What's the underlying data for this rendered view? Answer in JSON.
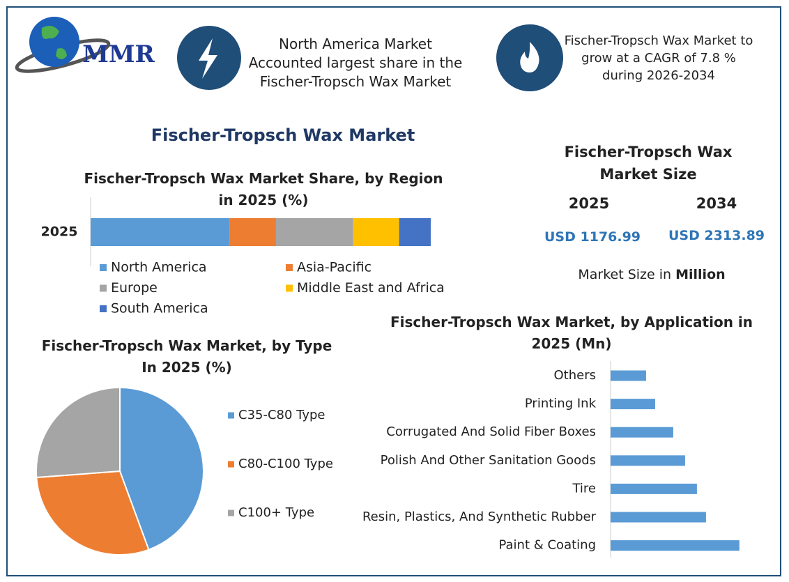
{
  "header": {
    "logo": "MMR",
    "text_left": "North America Market Accounted largest share in the Fischer-Tropsch Wax Market",
    "text_right": "Fischer-Tropsch Wax Market to grow at a CAGR of 7.8 % during 2026-2034"
  },
  "main_title": "Fischer-Tropsch Wax Market",
  "market_size": {
    "title": "Fischer-Tropsch Wax Market Size",
    "years": [
      {
        "year": "2025",
        "value": "USD 1176.99"
      },
      {
        "year": "2034",
        "value": "USD 2313.89"
      }
    ],
    "note": "Market Size in",
    "note_bold": "Million"
  },
  "chart_data": [
    {
      "type": "bar",
      "orientation": "horizontal",
      "stacked": true,
      "title": "Fischer-Tropsch Wax Market Share, by Region in 2025 (%)",
      "categories": [
        "2025"
      ],
      "xlim": [
        0,
        100
      ],
      "series": [
        {
          "name": "North America",
          "color": "#5b9bd5",
          "values": [
            40.8
          ]
        },
        {
          "name": "Asia-Pacific",
          "color": "#ed7d31",
          "values": [
            13.7
          ]
        },
        {
          "name": "Europe",
          "color": "#a5a5a5",
          "values": [
            22.7
          ]
        },
        {
          "name": "Middle East and Africa",
          "color": "#ffc000",
          "values": [
            13.5
          ]
        },
        {
          "name": "South America",
          "color": "#4472c4",
          "values": [
            9.3
          ]
        }
      ]
    },
    {
      "type": "pie",
      "title": "Fischer-Tropsch Wax Market, by Type In 2025 (%)",
      "categories": [
        "C35-C80 Type",
        "C80-C100 Type",
        "C100+ Type"
      ],
      "values": [
        44.4,
        29.4,
        26.2
      ],
      "colors": [
        "#5b9bd5",
        "#ed7d31",
        "#a5a5a5"
      ]
    },
    {
      "type": "bar",
      "orientation": "horizontal",
      "stacked": false,
      "title": "Fischer-Tropsch Wax Market, by Application in 2025 (Mn)",
      "categories": [
        "Others",
        "Printing Ink",
        "Corrugated And Solid Fiber Boxes",
        "Polish And Other Sanitation Goods",
        "Tire",
        "Resin, Plastics, And Synthetic Rubber",
        "Paint & Coating"
      ],
      "values": [
        79.2,
        99.4,
        139.8,
        166.2,
        192.6,
        212.8,
        287.3
      ],
      "color": "#5b9bd5",
      "xlim": [
        0,
        300
      ]
    }
  ]
}
